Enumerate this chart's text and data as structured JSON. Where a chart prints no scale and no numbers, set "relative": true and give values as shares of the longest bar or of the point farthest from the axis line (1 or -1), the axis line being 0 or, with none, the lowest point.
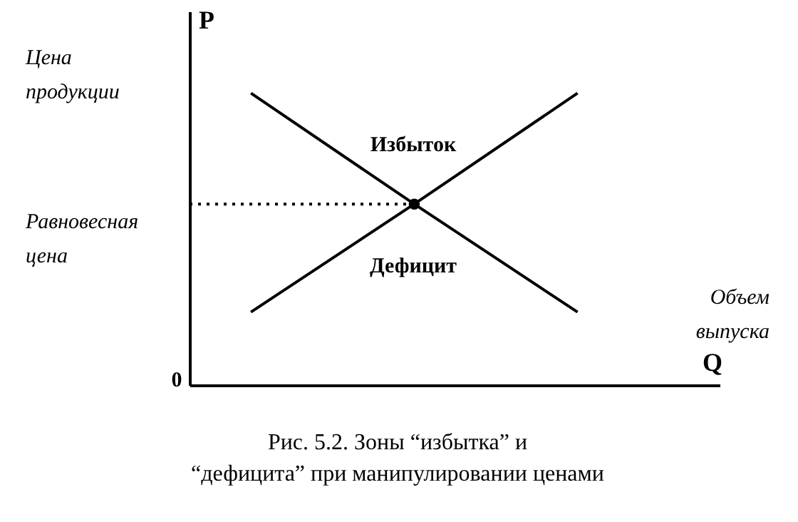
{
  "chart_data": {
    "type": "line",
    "relative": true,
    "title": "Рис. 5.2. Зоны “избытка” и “дефицита” при манипулировании ценами",
    "xlabel": "Q",
    "ylabel": "P",
    "categories": [
      null,
      null,
      null
    ],
    "series": [
      {
        "color": "#000000",
        "values": [
          1,
          0.62,
          0.25
        ],
        "line_style": "solid"
      },
      {
        "color": "#000000",
        "values": [
          0.25,
          0.62,
          1
        ],
        "line_style": "solid"
      }
    ],
    "ref_lines": [
      {
        "axis": "y",
        "value": 0.62,
        "label": "Равновесная цена",
        "line_style": "dotted"
      }
    ],
    "annotations": [
      "Цена продукции",
      "Объем выпуска",
      "0",
      "Избыток",
      "Дефицит"
    ],
    "tick_labels": false,
    "grid": false
  }
}
